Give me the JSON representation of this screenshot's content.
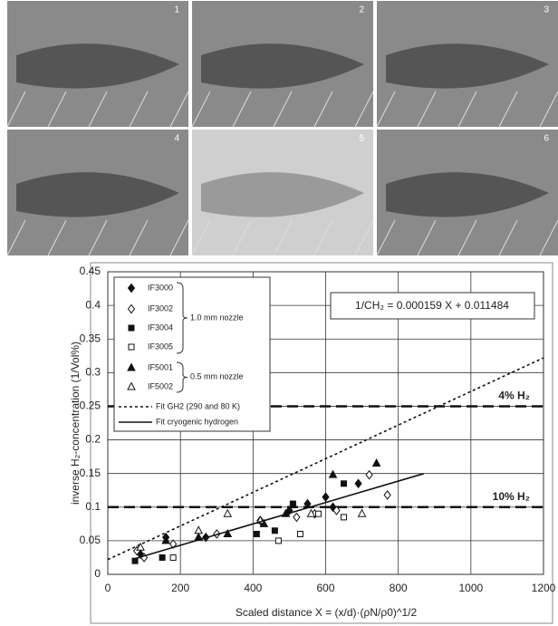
{
  "panels": [
    "1",
    "2",
    "3",
    "4",
    "5",
    "6"
  ],
  "chart_data": {
    "type": "scatter",
    "xlabel": "Scaled distance X = (x/d)·(ρN/ρ0)^1/2",
    "ylabel": "inverse H₂-concentration (1/Vol%)",
    "xlim": [
      0,
      1200
    ],
    "xticks": [
      0,
      200,
      400,
      600,
      800,
      1000,
      1200
    ],
    "ylim": [
      0,
      0.45
    ],
    "yticks": [
      0,
      0.05,
      0.1,
      0.15,
      0.2,
      0.25,
      0.3,
      0.35,
      0.4,
      0.45
    ],
    "grid": true,
    "annotation": "1/CH₂ = 0.000159 X + 0.011484",
    "groups": [
      {
        "label": "1.0 mm nozzle"
      },
      {
        "label": "0.5 mm nozzle"
      }
    ],
    "hlines": [
      {
        "value": 0.25,
        "label": "4% H₂"
      },
      {
        "value": 0.1,
        "label": "10% H₂"
      }
    ],
    "series": [
      {
        "name": "IF3000",
        "marker": "diamond",
        "filled": true,
        "color": "#111",
        "x": [
          90,
          160,
          270,
          420,
          500,
          550,
          600,
          620,
          690
        ],
        "values": [
          0.03,
          0.055,
          0.055,
          0.08,
          0.095,
          0.105,
          0.115,
          0.1,
          0.135
        ]
      },
      {
        "name": "IF3002",
        "marker": "diamond",
        "filled": false,
        "color": "#111",
        "x": [
          80,
          100,
          180,
          300,
          520,
          570,
          630,
          720,
          770
        ],
        "values": [
          0.035,
          0.025,
          0.045,
          0.06,
          0.085,
          0.09,
          0.095,
          0.148,
          0.118
        ]
      },
      {
        "name": "IF3004",
        "marker": "square",
        "filled": true,
        "color": "#111",
        "x": [
          75,
          150,
          410,
          460,
          510,
          650
        ],
        "values": [
          0.02,
          0.025,
          0.06,
          0.065,
          0.105,
          0.135
        ]
      },
      {
        "name": "IF3005",
        "marker": "square",
        "filled": false,
        "color": "#111",
        "x": [
          180,
          470,
          530,
          580,
          650
        ],
        "values": [
          0.025,
          0.05,
          0.06,
          0.09,
          0.085
        ]
      },
      {
        "name": "IF5001",
        "marker": "triangle",
        "filled": true,
        "color": "#111",
        "x": [
          160,
          250,
          330,
          430,
          490,
          620,
          740
        ],
        "values": [
          0.05,
          0.055,
          0.06,
          0.075,
          0.09,
          0.148,
          0.165
        ]
      },
      {
        "name": "IF5002",
        "marker": "triangle",
        "filled": false,
        "color": "#111",
        "x": [
          90,
          250,
          330,
          420,
          560,
          700
        ],
        "values": [
          0.04,
          0.065,
          0.09,
          0.08,
          0.09,
          0.09
        ]
      },
      {
        "name": "Fit GH2 (290 and 80 K)",
        "marker": "line",
        "dash": "dotted",
        "color": "#111",
        "x": [
          0,
          1200
        ],
        "values": [
          0.022,
          0.322
        ]
      },
      {
        "name": "Fit cryogenic hydrogen",
        "marker": "line",
        "dash": "solid",
        "color": "#111",
        "x": [
          75,
          870
        ],
        "values": [
          0.0234,
          0.1498
        ]
      }
    ]
  }
}
